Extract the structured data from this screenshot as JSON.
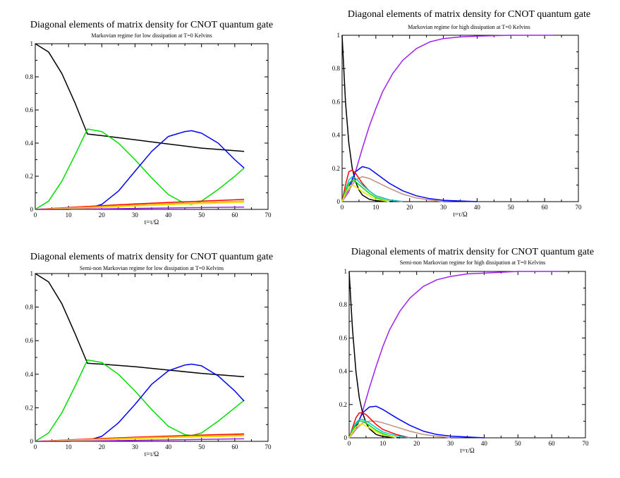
{
  "chart_data": [
    {
      "type": "line",
      "title": "Diagonal elements of matrix density for CNOT quantum gate",
      "subtitle": "Markovian regime for low dissipation at T=0 Kelvins",
      "xlabel": "t=τ/Ω",
      "ylabel": "",
      "xlim": [
        0,
        70
      ],
      "ylim": [
        0,
        1
      ],
      "xticks": [
        "0",
        "10",
        "20",
        "30",
        "40",
        "50",
        "60",
        "70"
      ],
      "yticks": [
        "0",
        "0.2",
        "0.4",
        "0.6",
        "0.8",
        "1"
      ],
      "series": [
        {
          "name": "black",
          "color": "#000000",
          "x": [
            0,
            4,
            8,
            12,
            15.7,
            20,
            30,
            40,
            50,
            62.8
          ],
          "y": [
            1,
            0.95,
            0.82,
            0.64,
            0.455,
            0.445,
            0.42,
            0.395,
            0.37,
            0.35
          ]
        },
        {
          "name": "green",
          "color": "#00dd00",
          "x": [
            0,
            4,
            8,
            12,
            15.7,
            20,
            25,
            30,
            35,
            40,
            45,
            47,
            50,
            55,
            60,
            62.8
          ],
          "y": [
            0,
            0.05,
            0.17,
            0.33,
            0.485,
            0.47,
            0.4,
            0.3,
            0.19,
            0.09,
            0.035,
            0.03,
            0.05,
            0.12,
            0.2,
            0.25
          ]
        },
        {
          "name": "blue",
          "color": "#0000ff",
          "x": [
            0,
            10,
            15.7,
            20,
            25,
            30,
            35,
            40,
            45,
            47,
            50,
            55,
            60,
            62.8
          ],
          "y": [
            0,
            0,
            0.005,
            0.03,
            0.11,
            0.23,
            0.35,
            0.44,
            0.47,
            0.475,
            0.46,
            0.4,
            0.3,
            0.25
          ]
        },
        {
          "name": "red",
          "color": "#ff0000",
          "x": [
            0,
            15.7,
            30,
            45,
            62.8
          ],
          "y": [
            0,
            0.018,
            0.033,
            0.046,
            0.06
          ]
        },
        {
          "name": "orange",
          "color": "#ffa500",
          "x": [
            0,
            15.7,
            30,
            45,
            62.8
          ],
          "y": [
            0,
            0.014,
            0.026,
            0.038,
            0.05
          ]
        },
        {
          "name": "yellow",
          "color": "#e8e800",
          "x": [
            0,
            15.7,
            30,
            45,
            62.8
          ],
          "y": [
            0,
            0.008,
            0.02,
            0.032,
            0.042
          ]
        },
        {
          "name": "violet",
          "color": "#a020f0",
          "x": [
            0,
            15.7,
            30,
            45,
            62.8
          ],
          "y": [
            0,
            0.002,
            0.006,
            0.01,
            0.014
          ]
        }
      ]
    },
    {
      "type": "line",
      "title": "Diagonal elements of matrix density for CNOT quantum gate",
      "subtitle": "Markovian regime for high dissipation at T=0 Kelvins",
      "xlabel": "t=τ/Ω",
      "ylabel": "",
      "xlim": [
        0,
        70
      ],
      "ylim": [
        0,
        1
      ],
      "xticks": [
        "0",
        "10",
        "20",
        "30",
        "40",
        "50",
        "60",
        "70"
      ],
      "yticks": [
        "0",
        "0.2",
        "0.4",
        "0.6",
        "0.8",
        "1"
      ],
      "series": [
        {
          "name": "purple",
          "color": "#a020f0",
          "x": [
            0,
            2,
            4,
            6,
            8,
            10,
            12,
            15,
            18,
            22,
            26,
            30,
            35,
            40,
            50,
            62.8
          ],
          "y": [
            0,
            0.06,
            0.18,
            0.32,
            0.45,
            0.56,
            0.66,
            0.77,
            0.85,
            0.92,
            0.96,
            0.98,
            0.99,
            0.995,
            1,
            1
          ]
        },
        {
          "name": "black",
          "color": "#000000",
          "x": [
            0,
            0.5,
            1,
            2,
            3,
            4,
            5,
            6,
            8,
            10,
            15
          ],
          "y": [
            1,
            0.8,
            0.6,
            0.35,
            0.2,
            0.12,
            0.07,
            0.04,
            0.015,
            0.005,
            0
          ]
        },
        {
          "name": "blue",
          "color": "#0000ff",
          "x": [
            0,
            2,
            4,
            6,
            8,
            10,
            14,
            18,
            22,
            26,
            30,
            40
          ],
          "y": [
            0,
            0.09,
            0.18,
            0.21,
            0.2,
            0.17,
            0.11,
            0.065,
            0.035,
            0.018,
            0.008,
            0
          ]
        },
        {
          "name": "tan",
          "color": "#c09080",
          "x": [
            0,
            2,
            4,
            6,
            8,
            10,
            14,
            18,
            22,
            26,
            30
          ],
          "y": [
            0,
            0.07,
            0.13,
            0.15,
            0.14,
            0.12,
            0.08,
            0.045,
            0.022,
            0.01,
            0
          ]
        },
        {
          "name": "red",
          "color": "#ff0000",
          "x": [
            0,
            1,
            2,
            3,
            4,
            5,
            6,
            8,
            10,
            14,
            18
          ],
          "y": [
            0,
            0.1,
            0.18,
            0.19,
            0.17,
            0.14,
            0.11,
            0.065,
            0.035,
            0.01,
            0
          ]
        },
        {
          "name": "cyan",
          "color": "#00c8c8",
          "x": [
            0,
            1,
            2,
            3,
            4,
            6,
            8,
            10,
            14,
            18
          ],
          "y": [
            0,
            0.07,
            0.13,
            0.15,
            0.14,
            0.1,
            0.065,
            0.035,
            0.01,
            0
          ]
        },
        {
          "name": "green",
          "color": "#00dd00",
          "x": [
            0,
            1,
            2,
            3,
            4,
            6,
            8,
            10,
            14
          ],
          "y": [
            0,
            0.06,
            0.11,
            0.13,
            0.12,
            0.085,
            0.05,
            0.025,
            0
          ]
        },
        {
          "name": "yellow",
          "color": "#e8e800",
          "x": [
            0,
            1,
            2,
            3,
            4,
            6,
            8,
            10,
            14
          ],
          "y": [
            0,
            0.05,
            0.09,
            0.1,
            0.09,
            0.06,
            0.035,
            0.015,
            0
          ]
        }
      ]
    },
    {
      "type": "line",
      "title": "Diagonal elements of matrix density for CNOT quantum gate",
      "subtitle": "Semi-non Markovian regime for low dissipation at T=0 Kelvins",
      "xlabel": "t=τ/Ω",
      "ylabel": "",
      "xlim": [
        0,
        70
      ],
      "ylim": [
        0,
        1
      ],
      "xticks": [
        "0",
        "10",
        "20",
        "30",
        "40",
        "50",
        "60",
        "70"
      ],
      "yticks": [
        "0",
        "0.2",
        "0.4",
        "0.6",
        "0.8",
        "1"
      ],
      "series": [
        {
          "name": "black",
          "color": "#000000",
          "x": [
            0,
            4,
            8,
            12,
            15.7,
            20,
            30,
            40,
            50,
            62.8
          ],
          "y": [
            1,
            0.95,
            0.82,
            0.64,
            0.465,
            0.46,
            0.445,
            0.425,
            0.405,
            0.385
          ]
        },
        {
          "name": "green",
          "color": "#00dd00",
          "x": [
            0,
            4,
            8,
            12,
            15.7,
            20,
            25,
            30,
            35,
            40,
            45,
            47,
            50,
            55,
            60,
            62.8
          ],
          "y": [
            0,
            0.05,
            0.17,
            0.33,
            0.485,
            0.47,
            0.4,
            0.3,
            0.19,
            0.09,
            0.04,
            0.035,
            0.05,
            0.12,
            0.2,
            0.245
          ]
        },
        {
          "name": "blue",
          "color": "#0000ff",
          "x": [
            0,
            10,
            15.7,
            20,
            25,
            30,
            35,
            40,
            45,
            47,
            50,
            55,
            60,
            62.8
          ],
          "y": [
            0,
            0,
            0.005,
            0.03,
            0.11,
            0.22,
            0.34,
            0.42,
            0.455,
            0.46,
            0.45,
            0.39,
            0.3,
            0.24
          ]
        },
        {
          "name": "red",
          "color": "#ff0000",
          "x": [
            0,
            15.7,
            30,
            45,
            62.8
          ],
          "y": [
            0,
            0.014,
            0.025,
            0.035,
            0.044
          ]
        },
        {
          "name": "orange",
          "color": "#ffa500",
          "x": [
            0,
            15.7,
            30,
            45,
            62.8
          ],
          "y": [
            0,
            0.011,
            0.021,
            0.03,
            0.038
          ]
        },
        {
          "name": "yellow",
          "color": "#e8e800",
          "x": [
            0,
            15.7,
            30,
            45,
            62.8
          ],
          "y": [
            0,
            0.007,
            0.015,
            0.024,
            0.032
          ]
        },
        {
          "name": "violet",
          "color": "#a020f0",
          "x": [
            0,
            15.7,
            30,
            45,
            62.8
          ],
          "y": [
            0,
            0.002,
            0.006,
            0.01,
            0.015
          ]
        }
      ]
    },
    {
      "type": "line",
      "title": "Diagonal elements of matrix density for CNOT quantum gate",
      "subtitle": "Semi-non Markovian regime for high dissipation at T=0 Kelvins",
      "xlabel": "t=τ/Ω",
      "ylabel": "",
      "xlim": [
        0,
        70
      ],
      "ylim": [
        0,
        1
      ],
      "xticks": [
        "0",
        "10",
        "20",
        "30",
        "40",
        "50",
        "60",
        "70"
      ],
      "yticks": [
        "0",
        "0.2",
        "0.4",
        "0.6",
        "0.8",
        "1"
      ],
      "series": [
        {
          "name": "purple",
          "color": "#a020f0",
          "x": [
            0,
            2,
            4,
            6,
            8,
            10,
            12,
            15,
            18,
            22,
            26,
            30,
            35,
            40,
            50,
            62.8
          ],
          "y": [
            0,
            0.05,
            0.16,
            0.3,
            0.43,
            0.55,
            0.65,
            0.76,
            0.84,
            0.91,
            0.95,
            0.97,
            0.985,
            0.99,
            1,
            1
          ]
        },
        {
          "name": "black",
          "color": "#000000",
          "x": [
            0,
            0.5,
            1,
            2,
            3,
            4,
            5,
            6,
            8,
            10,
            15
          ],
          "y": [
            1,
            0.82,
            0.65,
            0.4,
            0.24,
            0.15,
            0.09,
            0.055,
            0.02,
            0.008,
            0
          ]
        },
        {
          "name": "blue",
          "color": "#0000ff",
          "x": [
            0,
            2,
            4,
            6,
            8,
            10,
            14,
            18,
            22,
            26,
            30,
            40
          ],
          "y": [
            0,
            0.07,
            0.15,
            0.185,
            0.19,
            0.17,
            0.12,
            0.075,
            0.04,
            0.02,
            0.01,
            0
          ]
        },
        {
          "name": "tan",
          "color": "#c09080",
          "x": [
            0,
            2,
            4,
            6,
            8,
            10,
            14,
            18,
            22,
            26,
            30
          ],
          "y": [
            0,
            0.05,
            0.09,
            0.1,
            0.1,
            0.09,
            0.065,
            0.04,
            0.02,
            0.01,
            0
          ]
        },
        {
          "name": "red",
          "color": "#ff0000",
          "x": [
            0,
            1,
            2,
            3,
            4,
            5,
            6,
            8,
            10,
            14,
            18
          ],
          "y": [
            0,
            0.06,
            0.12,
            0.15,
            0.15,
            0.14,
            0.12,
            0.08,
            0.05,
            0.02,
            0
          ]
        },
        {
          "name": "cyan",
          "color": "#00c8c8",
          "x": [
            0,
            1,
            2,
            3,
            4,
            6,
            8,
            10,
            14,
            18
          ],
          "y": [
            0,
            0.05,
            0.09,
            0.11,
            0.11,
            0.09,
            0.06,
            0.035,
            0.012,
            0
          ]
        },
        {
          "name": "green",
          "color": "#00dd00",
          "x": [
            0,
            1,
            2,
            3,
            4,
            6,
            8,
            10,
            14
          ],
          "y": [
            0,
            0.04,
            0.08,
            0.1,
            0.1,
            0.075,
            0.045,
            0.025,
            0
          ]
        },
        {
          "name": "yellow",
          "color": "#e8e800",
          "x": [
            0,
            1,
            2,
            3,
            4,
            6,
            8,
            10,
            14
          ],
          "y": [
            0,
            0.035,
            0.065,
            0.08,
            0.08,
            0.06,
            0.035,
            0.018,
            0
          ]
        }
      ]
    }
  ]
}
